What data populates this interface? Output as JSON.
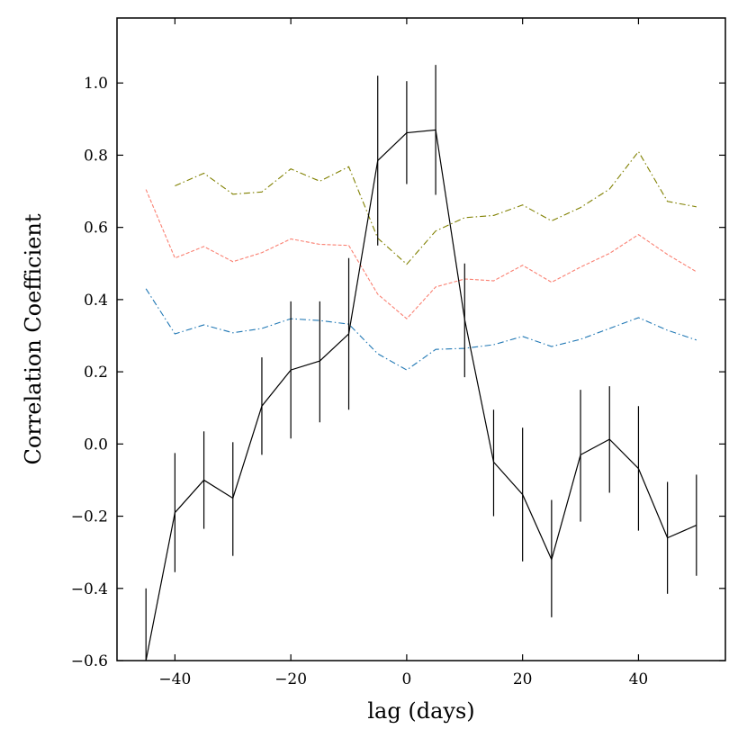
{
  "chart_data": {
    "type": "line",
    "title": "",
    "xlabel": "lag (days)",
    "ylabel": "Correlation Coefficient",
    "xlim": [
      -50,
      55
    ],
    "ylim": [
      -0.6,
      1.18
    ],
    "xticks": [
      -40,
      -20,
      0,
      20,
      40
    ],
    "xtick_labels": [
      "−40",
      "−20",
      "0",
      "20",
      "40"
    ],
    "yticks": [
      -0.6,
      -0.4,
      -0.2,
      0.0,
      0.2,
      0.4,
      0.6,
      0.8,
      1.0
    ],
    "ytick_labels": [
      "−0.6",
      "−0.4",
      "−0.2",
      "0.0",
      "0.2",
      "0.4",
      "0.6",
      "0.8",
      "1.0"
    ],
    "grid": false,
    "series": [
      {
        "name": "correlation",
        "color": "#000000",
        "style": "solid",
        "x": [
          -45,
          -40,
          -35,
          -30,
          -25,
          -20,
          -15,
          -10,
          -5,
          0,
          5,
          10,
          15,
          20,
          25,
          30,
          35,
          40,
          45,
          50
        ],
        "values": [
          -0.6,
          -0.19,
          -0.1,
          -0.15,
          0.105,
          0.205,
          0.23,
          0.305,
          0.785,
          0.862,
          0.87,
          0.345,
          -0.05,
          -0.14,
          -0.32,
          -0.03,
          0.013,
          -0.068,
          -0.26,
          -0.225
        ],
        "err_low": [
          -0.4,
          -0.355,
          -0.235,
          -0.31,
          -0.03,
          0.015,
          0.06,
          0.095,
          0.55,
          0.72,
          0.69,
          0.185,
          -0.2,
          -0.325,
          -0.48,
          -0.215,
          -0.135,
          -0.24,
          -0.415,
          -0.365
        ],
        "err_high": [
          -0.6,
          -0.025,
          0.035,
          0.005,
          0.24,
          0.395,
          0.395,
          0.515,
          1.02,
          1.005,
          1.05,
          0.5,
          0.095,
          0.045,
          -0.155,
          0.15,
          0.16,
          0.105,
          -0.105,
          -0.085
        ]
      },
      {
        "name": "olive dash-dot",
        "color": "#808000",
        "style": "dashdot",
        "x": [
          -40,
          -35,
          -30,
          -25,
          -20,
          -15,
          -10,
          -5,
          0,
          5,
          10,
          15,
          20,
          25,
          30,
          35,
          40,
          45,
          50
        ],
        "values": [
          0.715,
          0.75,
          0.692,
          0.698,
          0.762,
          0.728,
          0.768,
          0.57,
          0.498,
          0.59,
          0.627,
          0.633,
          0.662,
          0.618,
          0.655,
          0.706,
          0.81,
          0.672,
          0.657
        ]
      },
      {
        "name": "salmon dashed",
        "color": "#FA8072",
        "style": "dashed",
        "x": [
          -45,
          -40,
          -35,
          -30,
          -25,
          -20,
          -15,
          -10,
          -5,
          0,
          5,
          10,
          15,
          20,
          25,
          30,
          35,
          40,
          45,
          50
        ],
        "values": [
          0.705,
          0.515,
          0.547,
          0.505,
          0.53,
          0.568,
          0.553,
          0.55,
          0.415,
          0.347,
          0.435,
          0.457,
          0.452,
          0.495,
          0.448,
          0.49,
          0.528,
          0.58,
          0.525,
          0.477
        ]
      },
      {
        "name": "blue dash-dot",
        "color": "#1f77b4",
        "style": "dashdot",
        "x": [
          -45,
          -40,
          -35,
          -30,
          -25,
          -20,
          -15,
          -10,
          -5,
          0,
          5,
          10,
          15,
          20,
          25,
          30,
          35,
          40,
          45,
          50
        ],
        "values": [
          0.43,
          0.305,
          0.33,
          0.308,
          0.32,
          0.347,
          0.342,
          0.332,
          0.25,
          0.205,
          0.262,
          0.265,
          0.275,
          0.298,
          0.27,
          0.29,
          0.32,
          0.35,
          0.315,
          0.288
        ]
      }
    ]
  }
}
